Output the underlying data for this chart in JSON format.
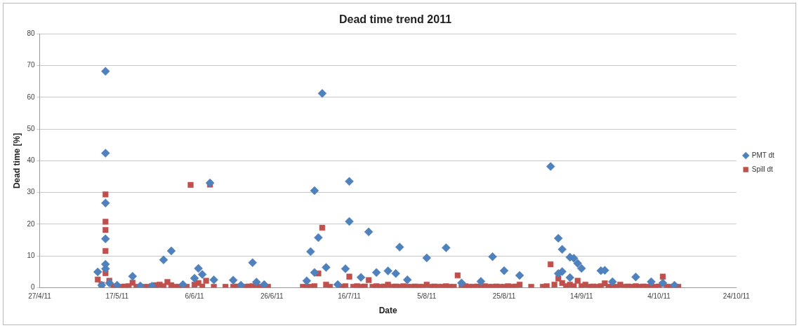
{
  "chart_data": {
    "type": "scatter",
    "title": "Dead time trend 2011",
    "xlabel": "Date",
    "ylabel": "Dead time [%]",
    "xlim": [
      "2011-04-27",
      "2011-10-24"
    ],
    "xticks": [
      {
        "value": "2011-04-27",
        "label": "27/4/11"
      },
      {
        "value": "2011-05-17",
        "label": "17/5/11"
      },
      {
        "value": "2011-06-06",
        "label": "6/6/11"
      },
      {
        "value": "2011-06-26",
        "label": "26/6/11"
      },
      {
        "value": "2011-07-16",
        "label": "16/7/11"
      },
      {
        "value": "2011-08-05",
        "label": "5/8/11"
      },
      {
        "value": "2011-08-25",
        "label": "25/8/11"
      },
      {
        "value": "2011-09-14",
        "label": "14/9/11"
      },
      {
        "value": "2011-10-04",
        "label": "4/10/11"
      },
      {
        "value": "2011-10-24",
        "label": "24/10/11"
      }
    ],
    "ylim": [
      0,
      80
    ],
    "yticks": [
      0,
      10,
      20,
      30,
      40,
      50,
      60,
      70,
      80
    ],
    "grid": "y",
    "legend": "right",
    "series": [
      {
        "name": "PMT dt",
        "color": "#4f81bd",
        "marker": "diamond",
        "x": [
          "2011-05-12",
          "2011-05-13",
          "2011-05-14",
          "2011-05-14",
          "2011-05-14",
          "2011-05-14",
          "2011-05-14",
          "2011-05-14",
          "2011-05-15",
          "2011-05-17",
          "2011-05-21",
          "2011-05-23",
          "2011-05-26",
          "2011-05-29",
          "2011-05-31",
          "2011-06-03",
          "2011-06-06",
          "2011-06-07",
          "2011-06-08",
          "2011-06-10",
          "2011-06-11",
          "2011-06-16",
          "2011-06-18",
          "2011-06-21",
          "2011-06-22",
          "2011-06-24",
          "2011-07-05",
          "2011-07-06",
          "2011-07-07",
          "2011-07-07",
          "2011-07-08",
          "2011-07-09",
          "2011-07-10",
          "2011-07-13",
          "2011-07-15",
          "2011-07-16",
          "2011-07-16",
          "2011-07-19",
          "2011-07-21",
          "2011-07-23",
          "2011-07-26",
          "2011-07-28",
          "2011-07-29",
          "2011-07-31",
          "2011-08-05",
          "2011-08-10",
          "2011-08-14",
          "2011-08-19",
          "2011-08-22",
          "2011-08-25",
          "2011-08-29",
          "2011-09-06",
          "2011-09-08",
          "2011-09-08",
          "2011-09-09",
          "2011-09-09",
          "2011-09-11",
          "2011-09-11",
          "2011-09-12",
          "2011-09-13",
          "2011-09-14",
          "2011-09-19",
          "2011-09-20",
          "2011-09-22",
          "2011-09-28",
          "2011-10-02",
          "2011-10-05",
          "2011-10-08"
        ],
        "values": [
          5.0,
          0.8,
          68.2,
          42.4,
          26.7,
          15.4,
          7.4,
          6.0,
          1.5,
          0.8,
          3.6,
          0.6,
          0.5,
          8.8,
          11.6,
          1.0,
          3.0,
          6.1,
          4.2,
          33.0,
          2.5,
          2.4,
          0.8,
          7.9,
          1.8,
          1.0,
          2.2,
          11.4,
          30.6,
          4.8,
          15.8,
          61.2,
          6.4,
          1.0,
          6.0,
          33.5,
          20.9,
          3.3,
          17.6,
          4.8,
          5.3,
          4.5,
          12.8,
          2.5,
          9.4,
          12.6,
          1.5,
          2.0,
          9.8,
          5.4,
          3.9,
          38.2,
          15.6,
          4.5,
          12.1,
          5.1,
          9.6,
          3.2,
          9.3,
          7.7,
          6.1,
          5.4,
          5.5,
          1.9,
          3.4,
          1.9,
          1.5,
          0.8
        ]
      },
      {
        "name": "Spill dt",
        "color": "#c0504d",
        "marker": "square",
        "x": [
          "2011-05-12",
          "2011-05-13",
          "2011-05-14",
          "2011-05-14",
          "2011-05-14",
          "2011-05-14",
          "2011-05-14",
          "2011-05-15",
          "2011-05-16",
          "2011-05-17",
          "2011-05-18",
          "2011-05-19",
          "2011-05-20",
          "2011-05-21",
          "2011-05-22",
          "2011-05-24",
          "2011-05-25",
          "2011-05-26",
          "2011-05-27",
          "2011-05-28",
          "2011-05-29",
          "2011-05-30",
          "2011-05-31",
          "2011-06-01",
          "2011-06-02",
          "2011-06-03",
          "2011-06-04",
          "2011-06-05",
          "2011-06-06",
          "2011-06-07",
          "2011-06-08",
          "2011-06-09",
          "2011-06-10",
          "2011-06-11",
          "2011-06-14",
          "2011-06-16",
          "2011-06-17",
          "2011-06-19",
          "2011-06-20",
          "2011-06-21",
          "2011-06-22",
          "2011-06-23",
          "2011-06-24",
          "2011-06-25",
          "2011-07-04",
          "2011-07-05",
          "2011-07-06",
          "2011-07-07",
          "2011-07-08",
          "2011-07-09",
          "2011-07-10",
          "2011-07-11",
          "2011-07-14",
          "2011-07-15",
          "2011-07-16",
          "2011-07-17",
          "2011-07-18",
          "2011-07-19",
          "2011-07-20",
          "2011-07-21",
          "2011-07-22",
          "2011-07-23",
          "2011-07-24",
          "2011-07-25",
          "2011-07-26",
          "2011-07-27",
          "2011-07-28",
          "2011-07-29",
          "2011-07-30",
          "2011-07-31",
          "2011-08-01",
          "2011-08-02",
          "2011-08-03",
          "2011-08-04",
          "2011-08-05",
          "2011-08-06",
          "2011-08-07",
          "2011-08-08",
          "2011-08-09",
          "2011-08-10",
          "2011-08-11",
          "2011-08-12",
          "2011-08-13",
          "2011-08-14",
          "2011-08-15",
          "2011-08-16",
          "2011-08-17",
          "2011-08-18",
          "2011-08-19",
          "2011-08-20",
          "2011-08-21",
          "2011-08-22",
          "2011-08-23",
          "2011-08-24",
          "2011-08-25",
          "2011-08-26",
          "2011-08-27",
          "2011-08-28",
          "2011-08-29",
          "2011-09-01",
          "2011-09-04",
          "2011-09-05",
          "2011-09-06",
          "2011-09-07",
          "2011-09-08",
          "2011-09-09",
          "2011-09-10",
          "2011-09-11",
          "2011-09-12",
          "2011-09-13",
          "2011-09-14",
          "2011-09-15",
          "2011-09-16",
          "2011-09-17",
          "2011-09-18",
          "2011-09-19",
          "2011-09-20",
          "2011-09-21",
          "2011-09-22",
          "2011-09-23",
          "2011-09-24",
          "2011-09-25",
          "2011-09-26",
          "2011-09-27",
          "2011-09-28",
          "2011-09-29",
          "2011-09-30",
          "2011-10-01",
          "2011-10-02",
          "2011-10-03",
          "2011-10-04",
          "2011-10-05",
          "2011-10-06",
          "2011-10-07",
          "2011-10-08",
          "2011-10-09"
        ],
        "values": [
          2.6,
          1.0,
          29.4,
          20.8,
          18.2,
          11.6,
          4.6,
          2.2,
          0.5,
          0.3,
          0.3,
          0.4,
          0.5,
          1.6,
          0.3,
          0.3,
          0.3,
          0.5,
          0.8,
          1.0,
          0.5,
          1.8,
          0.8,
          0.3,
          0.3,
          0.5,
          0.3,
          32.4,
          1.0,
          1.5,
          0.4,
          2.2,
          32.5,
          0.3,
          0.3,
          0.3,
          0.4,
          0.3,
          0.4,
          0.5,
          0.5,
          0.3,
          0.3,
          0.3,
          0.3,
          0.3,
          0.3,
          0.5,
          4.5,
          18.9,
          1.0,
          0.3,
          0.3,
          0.5,
          3.5,
          0.3,
          0.5,
          0.3,
          0.4,
          2.4,
          0.3,
          0.5,
          0.3,
          0.4,
          1.0,
          0.3,
          0.4,
          0.3,
          0.5,
          0.3,
          0.3,
          0.4,
          0.3,
          0.3,
          1.0,
          0.3,
          0.4,
          0.3,
          0.3,
          0.5,
          0.3,
          0.3,
          3.9,
          0.3,
          0.5,
          0.3,
          0.3,
          0.4,
          0.3,
          0.5,
          0.3,
          0.3,
          0.4,
          0.3,
          0.3,
          0.5,
          0.3,
          0.4,
          1.0,
          0.3,
          0.3,
          0.5,
          7.4,
          1.0,
          2.9,
          1.5,
          0.5,
          1.0,
          0.5,
          2.2,
          0.5,
          1.0,
          0.3,
          0.4,
          0.3,
          0.5,
          1.4,
          0.3,
          0.4,
          0.3,
          1.0,
          0.3,
          0.4,
          0.3,
          0.5,
          0.3,
          0.4,
          0.3,
          0.5,
          0.3,
          0.4,
          3.5,
          0.3,
          0.3,
          0.4,
          0.3
        ]
      }
    ]
  }
}
